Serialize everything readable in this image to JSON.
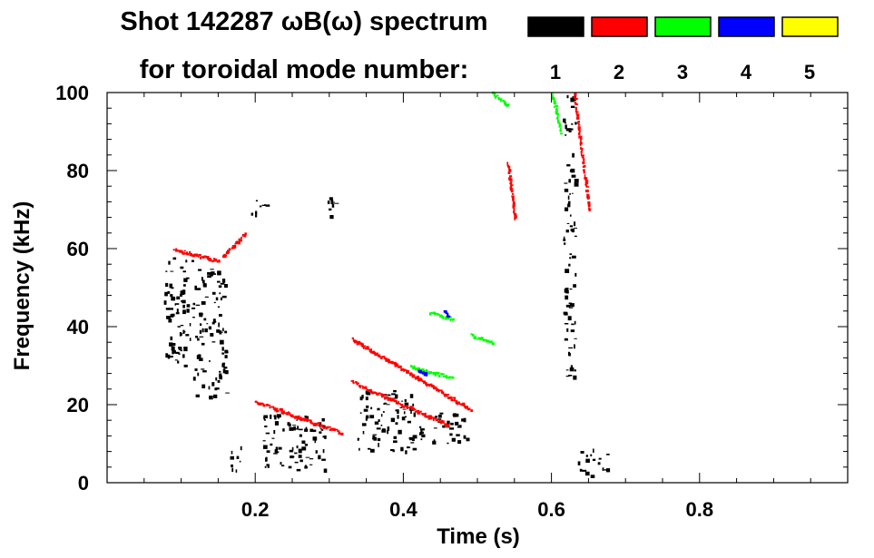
{
  "chart_data": {
    "type": "heatmap",
    "title_line1": "Shot 142287 ωB(ω) spectrum",
    "title_line2": "for toroidal mode number:",
    "xlabel": "Time (s)",
    "ylabel": "Frequency (kHz)",
    "xlim": [
      0.0,
      1.0
    ],
    "ylim": [
      0,
      100
    ],
    "x_ticks": [
      {
        "value": 0.2,
        "label": "0.2"
      },
      {
        "value": 0.4,
        "label": "0.4"
      },
      {
        "value": 0.6,
        "label": "0.6"
      },
      {
        "value": 0.8,
        "label": "0.8"
      }
    ],
    "y_ticks": [
      {
        "value": 0,
        "label": "0"
      },
      {
        "value": 20,
        "label": "20"
      },
      {
        "value": 40,
        "label": "40"
      },
      {
        "value": 60,
        "label": "60"
      },
      {
        "value": 80,
        "label": "80"
      },
      {
        "value": 100,
        "label": "100"
      }
    ],
    "legend": [
      {
        "label": "1",
        "color": "#000000"
      },
      {
        "label": "2",
        "color": "#ff0000"
      },
      {
        "label": "3",
        "color": "#00ff00"
      },
      {
        "label": "4",
        "color": "#0000ff"
      },
      {
        "label": "5",
        "color": "#ffff00"
      }
    ],
    "series": [
      {
        "name": "1",
        "color": "#000000",
        "regions": [
          {
            "t": [
              0.075,
              0.115
            ],
            "f": [
              30,
              58
            ]
          },
          {
            "t": [
              0.115,
              0.16
            ],
            "f": [
              22,
              55
            ]
          },
          {
            "t": [
              0.21,
              0.295
            ],
            "f": [
              3,
              18
            ]
          },
          {
            "t": [
              0.335,
              0.415
            ],
            "f": [
              8,
              24
            ]
          },
          {
            "t": [
              0.415,
              0.485
            ],
            "f": [
              10,
              18
            ]
          },
          {
            "t": [
              0.295,
              0.31
            ],
            "f": [
              68,
              74
            ]
          },
          {
            "t": [
              0.19,
              0.215
            ],
            "f": [
              68,
              73
            ]
          },
          {
            "t": [
              0.615,
              0.632
            ],
            "f": [
              25,
              100
            ]
          },
          {
            "t": [
              0.635,
              0.675
            ],
            "f": [
              2,
              9
            ]
          },
          {
            "t": [
              0.165,
              0.18
            ],
            "f": [
              3,
              10
            ]
          }
        ]
      },
      {
        "name": "2",
        "color": "#ff0000",
        "ridges": [
          {
            "t": [
              0.2,
              0.315
            ],
            "f": [
              21,
              13
            ]
          },
          {
            "t": [
              0.33,
              0.49
            ],
            "f": [
              37,
              19
            ]
          },
          {
            "t": [
              0.33,
              0.46
            ],
            "f": [
              26,
              15
            ]
          },
          {
            "t": [
              0.09,
              0.15
            ],
            "f": [
              60,
              57
            ]
          },
          {
            "t": [
              0.155,
              0.185
            ],
            "f": [
              58,
              64
            ]
          },
          {
            "t": [
              0.54,
              0.55
            ],
            "f": [
              82,
              68
            ]
          },
          {
            "t": [
              0.63,
              0.65
            ],
            "f": [
              100,
              70
            ]
          }
        ]
      },
      {
        "name": "3",
        "color": "#00ff00",
        "ridges": [
          {
            "t": [
              0.41,
              0.465
            ],
            "f": [
              30,
              27
            ]
          },
          {
            "t": [
              0.435,
              0.465
            ],
            "f": [
              44,
              42
            ]
          },
          {
            "t": [
              0.49,
              0.52
            ],
            "f": [
              38,
              36
            ]
          },
          {
            "t": [
              0.6,
              0.612
            ],
            "f": [
              100,
              90
            ]
          },
          {
            "t": [
              0.52,
              0.54
            ],
            "f": [
              100,
              97
            ]
          }
        ]
      },
      {
        "name": "4",
        "color": "#0000ff",
        "ridges": [
          {
            "t": [
              0.42,
              0.43
            ],
            "f": [
              29,
              28
            ]
          },
          {
            "t": [
              0.455,
              0.46
            ],
            "f": [
              44,
              43
            ]
          }
        ]
      },
      {
        "name": "5",
        "color": "#ffff00",
        "ridges": []
      }
    ]
  }
}
